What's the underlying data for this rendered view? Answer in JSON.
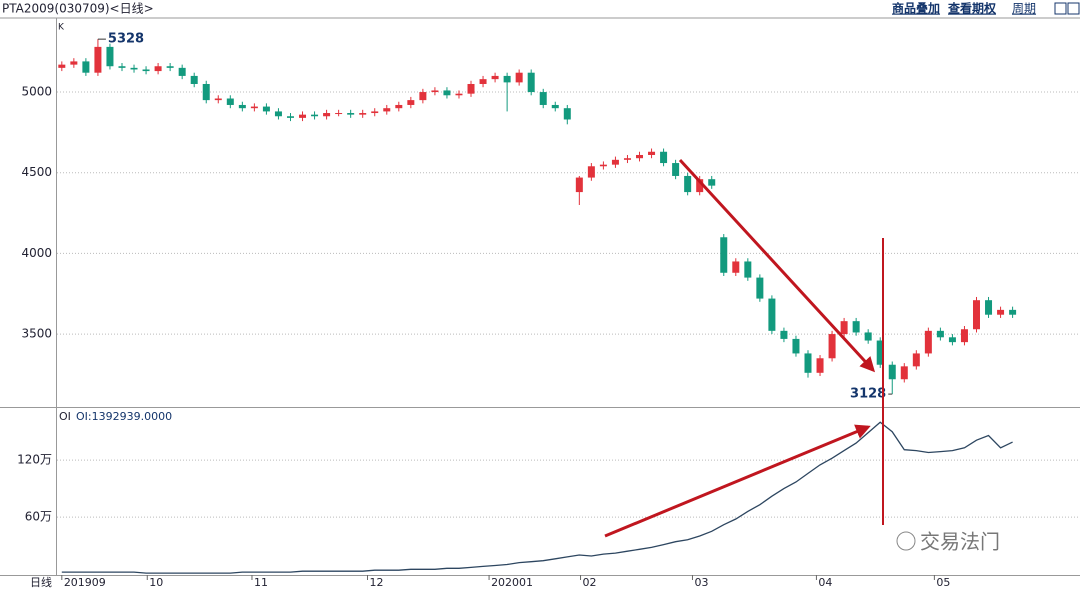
{
  "header": {
    "title": "PTA2009(030709)<日线>",
    "links": [
      "商品叠加",
      "查看期权",
      "周期"
    ]
  },
  "watermark": "交易法门",
  "chart_data": {
    "type": "candlestick",
    "panel_label": "K",
    "x_axis_label": "日线",
    "up_color": "#e2323b",
    "down_color": "#129a7e",
    "xlim": [
      -0.4,
      84.6
    ],
    "xticks": [
      {
        "value": 0,
        "label": "201909"
      },
      {
        "value": 7.1,
        "label": "10"
      },
      {
        "value": 15.8,
        "label": "11"
      },
      {
        "value": 25.4,
        "label": "12"
      },
      {
        "value": 35.5,
        "label": "202001"
      },
      {
        "value": 43.1,
        "label": "02"
      },
      {
        "value": 52.4,
        "label": "03"
      },
      {
        "value": 62.7,
        "label": "04"
      },
      {
        "value": 72.5,
        "label": "05"
      }
    ],
    "ylim": [
      3048,
      5459
    ],
    "yticks": [
      3500,
      4000,
      4500,
      5000
    ],
    "grid": true,
    "open": [
      5150,
      5170,
      5190,
      5120,
      5280,
      5160,
      5150,
      5140,
      5130,
      5160,
      5150,
      5100,
      5050,
      4950,
      4960,
      4920,
      4900,
      4910,
      4880,
      4850,
      4840,
      4860,
      4850,
      4870,
      4870,
      4860,
      4870,
      4880,
      4900,
      4920,
      4950,
      5000,
      5010,
      4980,
      4990,
      5050,
      5080,
      5100,
      5060,
      5120,
      5000,
      4920,
      4900,
      4380,
      4470,
      4540,
      4550,
      4580,
      4590,
      4610,
      4630,
      4560,
      4480,
      4380,
      4460,
      4100,
      3880,
      3950,
      3850,
      3720,
      3520,
      3470,
      3380,
      3260,
      3350,
      3500,
      3580,
      3510,
      3460,
      3310,
      3220,
      3300,
      3380,
      3520,
      3480,
      3450,
      3530,
      3710,
      3620,
      3650
    ],
    "high": [
      5190,
      5210,
      5210,
      5328,
      5300,
      5180,
      5170,
      5160,
      5180,
      5180,
      5170,
      5120,
      5070,
      4980,
      4980,
      4940,
      4930,
      4930,
      4900,
      4870,
      4880,
      4880,
      4890,
      4890,
      4890,
      4890,
      4900,
      4920,
      4940,
      4970,
      5020,
      5030,
      5030,
      5010,
      5070,
      5100,
      5120,
      5120,
      5140,
      5140,
      5020,
      4940,
      4920,
      4480,
      4560,
      4570,
      4600,
      4610,
      4630,
      4650,
      4650,
      4580,
      4500,
      4480,
      4480,
      4120,
      3970,
      3970,
      3870,
      3740,
      3540,
      3490,
      3400,
      3370,
      3520,
      3600,
      3600,
      3530,
      3480,
      3330,
      3320,
      3400,
      3540,
      3540,
      3500,
      3550,
      3730,
      3730,
      3670,
      3670
    ],
    "low": [
      5130,
      5150,
      5100,
      5100,
      5140,
      5130,
      5120,
      5110,
      5110,
      5130,
      5080,
      5030,
      4930,
      4930,
      4900,
      4880,
      4880,
      4860,
      4830,
      4820,
      4820,
      4830,
      4830,
      4850,
      4840,
      4840,
      4850,
      4860,
      4880,
      4900,
      4930,
      4980,
      4960,
      4960,
      4970,
      5030,
      5060,
      4880,
      5040,
      4980,
      4900,
      4880,
      4800,
      4300,
      4450,
      4520,
      4530,
      4560,
      4570,
      4590,
      4540,
      4460,
      4360,
      4360,
      4400,
      3860,
      3860,
      3830,
      3700,
      3500,
      3450,
      3360,
      3230,
      3240,
      3330,
      3480,
      3490,
      3440,
      3290,
      3128,
      3200,
      3280,
      3360,
      3460,
      3430,
      3430,
      3510,
      3600,
      3600,
      3600
    ],
    "close": [
      5170,
      5190,
      5120,
      5280,
      5160,
      5150,
      5140,
      5130,
      5160,
      5150,
      5100,
      5050,
      4950,
      4960,
      4920,
      4900,
      4910,
      4880,
      4850,
      4840,
      4860,
      4850,
      4870,
      4870,
      4860,
      4870,
      4880,
      4900,
      4920,
      4950,
      5000,
      5010,
      4980,
      4990,
      5050,
      5080,
      5100,
      5060,
      5120,
      5000,
      4920,
      4900,
      4830,
      4470,
      4540,
      4550,
      4580,
      4590,
      4610,
      4630,
      4560,
      4480,
      4380,
      4460,
      4420,
      3880,
      3950,
      3850,
      3720,
      3520,
      3470,
      3380,
      3260,
      3350,
      3500,
      3580,
      3510,
      3460,
      3310,
      3220,
      3300,
      3380,
      3520,
      3480,
      3450,
      3530,
      3710,
      3620,
      3650,
      3620
    ],
    "annotations": [
      {
        "label": "5328",
        "value": 5328,
        "x": 3
      },
      {
        "label": "3128",
        "value": 3128,
        "x": 69
      }
    ],
    "oi": {
      "type": "line",
      "panel_label": "OI",
      "readout": "OI:1392939.0000",
      "color": "#2d4660",
      "ylim": [
        0,
        176
      ],
      "yticks": [
        {
          "value": 60,
          "label": "60万"
        },
        {
          "value": 120,
          "label": "120万"
        }
      ],
      "values": [
        2,
        2,
        2,
        2,
        2,
        2,
        2,
        1,
        1,
        1,
        1,
        1,
        1,
        1,
        1,
        2,
        2,
        2,
        2,
        2,
        3,
        3,
        3,
        3,
        3,
        3,
        4,
        4,
        4,
        5,
        5,
        5,
        6,
        6,
        7,
        8,
        9,
        10,
        12,
        13,
        14,
        16,
        18,
        20,
        19,
        21,
        22,
        24,
        26,
        28,
        31,
        34,
        36,
        40,
        45,
        52,
        58,
        66,
        73,
        82,
        90,
        97,
        106,
        115,
        122,
        130,
        138,
        149,
        160,
        150,
        131,
        130,
        128,
        129,
        130,
        133,
        141,
        146,
        133,
        139
      ]
    }
  }
}
